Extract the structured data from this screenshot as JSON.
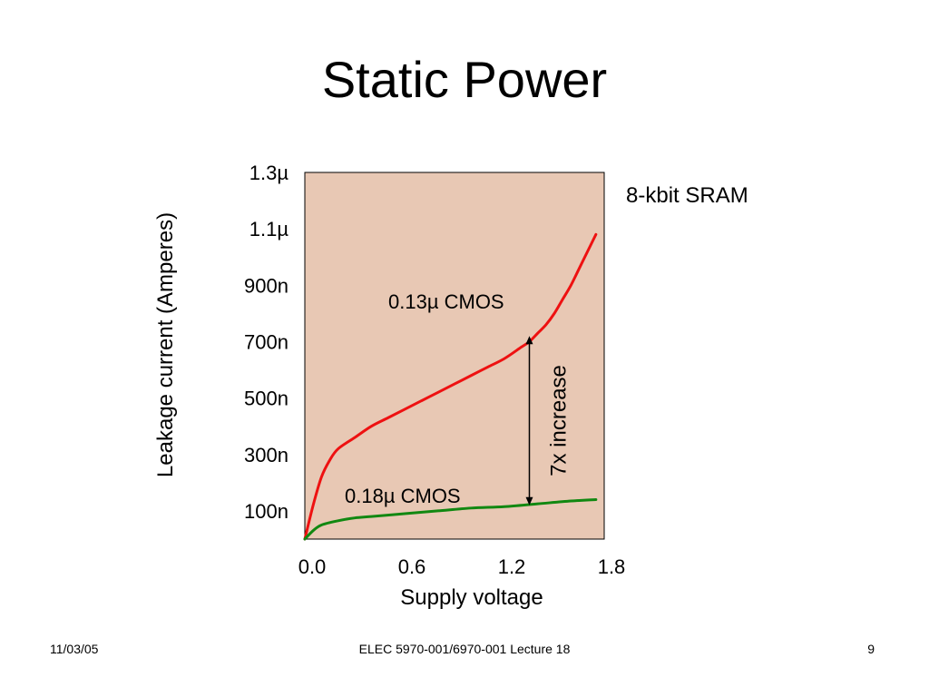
{
  "slide": {
    "title": "Static Power",
    "footer_date": "11/03/05",
    "footer_course": "ELEC 5970-001/6970-001 Lecture 18",
    "page_number": "9"
  },
  "chart_data": {
    "type": "line",
    "title": "8-kbit SRAM",
    "xlabel": "Supply voltage",
    "ylabel": "Leakage current (Amperes)",
    "xlim": [
      0.0,
      1.8
    ],
    "ylim": [
      0,
      1.3
    ],
    "y_unit": "µA",
    "x_ticks": [
      "0.0",
      "0.6",
      "1.2",
      "1.8"
    ],
    "x_tick_values": [
      0.0,
      0.6,
      1.2,
      1.8
    ],
    "y_ticks": [
      "100n",
      "300n",
      "500n",
      "700n",
      "900n",
      "1.1µ",
      "1.3µ"
    ],
    "y_tick_values": [
      0.1,
      0.3,
      0.5,
      0.7,
      0.9,
      1.1,
      1.3
    ],
    "plot_background": "#e8c8b4",
    "grid": false,
    "series": [
      {
        "name": "0.13µ CMOS",
        "color": "#ee1111",
        "x": [
          0.0,
          0.05,
          0.1,
          0.15,
          0.2,
          0.3,
          0.4,
          0.5,
          0.6,
          0.7,
          0.8,
          0.9,
          1.0,
          1.1,
          1.2,
          1.3,
          1.35,
          1.4,
          1.45,
          1.5,
          1.55,
          1.6,
          1.65,
          1.7,
          1.75
        ],
        "values": [
          0.0,
          0.12,
          0.22,
          0.28,
          0.32,
          0.36,
          0.4,
          0.43,
          0.46,
          0.49,
          0.52,
          0.55,
          0.58,
          0.61,
          0.64,
          0.68,
          0.7,
          0.73,
          0.76,
          0.8,
          0.85,
          0.9,
          0.96,
          1.02,
          1.08
        ]
      },
      {
        "name": "0.18µ CMOS",
        "color": "#118811",
        "x": [
          0.0,
          0.05,
          0.1,
          0.2,
          0.3,
          0.4,
          0.6,
          0.8,
          1.0,
          1.2,
          1.4,
          1.6,
          1.75
        ],
        "values": [
          0.0,
          0.03,
          0.05,
          0.065,
          0.075,
          0.08,
          0.09,
          0.1,
          0.11,
          0.115,
          0.125,
          0.135,
          0.14
        ]
      }
    ],
    "annotations": [
      {
        "text": "7x increase",
        "type": "double-arrow",
        "x": 1.35,
        "from": 0.12,
        "to": 0.72
      }
    ]
  }
}
